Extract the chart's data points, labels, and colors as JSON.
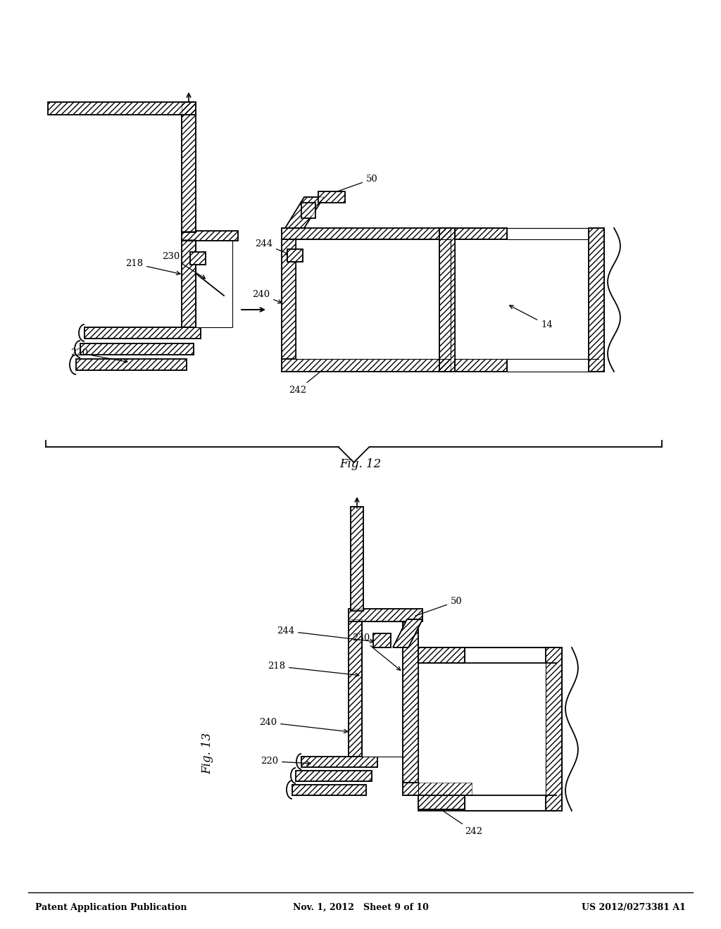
{
  "bg_color": "#ffffff",
  "line_color": "#000000",
  "header": {
    "left": "Patent Application Publication",
    "center": "Nov. 1, 2012   Sheet 9 of 10",
    "right": "US 2012/0273381 A1"
  },
  "fig13_label": "Fig. 13",
  "fig12_label": "Fig. 12"
}
